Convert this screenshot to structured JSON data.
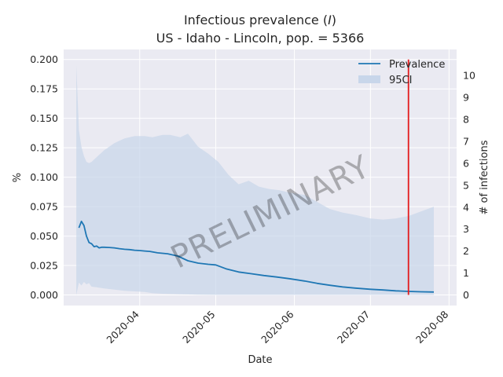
{
  "chart_data": {
    "type": "line",
    "title": "Infectious prevalence (I)",
    "title_parts": {
      "prefix": "Infectious prevalence (",
      "italic": "I",
      "suffix": ")"
    },
    "subtitle": "US - Idaho - Lincoln, pop. = 5366",
    "xlabel": "Date",
    "ylabel": "%",
    "y2label": "# of infections",
    "watermark": "PRELIMINARY",
    "population": 5366,
    "ylim": [
      -0.009,
      0.2085
    ],
    "yticks": [
      0.0,
      0.025,
      0.05,
      0.075,
      0.1,
      0.125,
      0.15,
      0.175,
      0.2
    ],
    "ytick_labels": [
      "0.000",
      "0.025",
      "0.050",
      "0.075",
      "0.100",
      "0.125",
      "0.150",
      "0.175",
      "0.200"
    ],
    "y2ticks": [
      0,
      1,
      2,
      3,
      4,
      5,
      6,
      7,
      8,
      9,
      10
    ],
    "y2tick_labels": [
      "0",
      "1",
      "2",
      "3",
      "4",
      "5",
      "6",
      "7",
      "8",
      "9",
      "10"
    ],
    "xlim": [
      "2020-03-02",
      "2020-08-04"
    ],
    "xticks": [
      "2020-04-01",
      "2020-05-01",
      "2020-06-01",
      "2020-07-01",
      "2020-08-01"
    ],
    "xtick_labels": [
      "2020-04",
      "2020-05",
      "2020-06",
      "2020-07",
      "2020-08"
    ],
    "grid": true,
    "legend": {
      "position": "top-right",
      "entries": [
        "Prevalence",
        "95CI"
      ]
    },
    "colors": {
      "prevalence": "#1f77b4",
      "ci_fill": "#c8d6ea",
      "vline": "#e31a1c",
      "axes_bg": "#eaeaf2",
      "grid": "#ffffff"
    },
    "vline": {
      "x": "2020-07-16",
      "ymin": 0.0,
      "ymax": 0.2
    },
    "series": [
      {
        "name": "Prevalence",
        "x": [
          "2020-03-08",
          "2020-03-09",
          "2020-03-10",
          "2020-03-11",
          "2020-03-12",
          "2020-03-13",
          "2020-03-14",
          "2020-03-15",
          "2020-03-16",
          "2020-03-17",
          "2020-03-18",
          "2020-03-20",
          "2020-03-22",
          "2020-03-24",
          "2020-03-26",
          "2020-03-28",
          "2020-03-30",
          "2020-04-01",
          "2020-04-03",
          "2020-04-05",
          "2020-04-08",
          "2020-04-12",
          "2020-04-16",
          "2020-04-20",
          "2020-04-24",
          "2020-04-28",
          "2020-05-01",
          "2020-05-05",
          "2020-05-10",
          "2020-05-15",
          "2020-05-20",
          "2020-05-25",
          "2020-05-30",
          "2020-06-05",
          "2020-06-10",
          "2020-06-15",
          "2020-06-20",
          "2020-06-25",
          "2020-07-01",
          "2020-07-06",
          "2020-07-11",
          "2020-07-16",
          "2020-07-21",
          "2020-07-26"
        ],
        "y": [
          0.057,
          0.0625,
          0.059,
          0.05,
          0.0445,
          0.0435,
          0.041,
          0.0415,
          0.04,
          0.0405,
          0.0405,
          0.0403,
          0.04,
          0.0393,
          0.0388,
          0.0385,
          0.038,
          0.0377,
          0.0373,
          0.037,
          0.0358,
          0.035,
          0.033,
          0.029,
          0.027,
          0.026,
          0.0255,
          0.0222,
          0.0195,
          0.018,
          0.0165,
          0.0152,
          0.0138,
          0.0118,
          0.0098,
          0.0082,
          0.0068,
          0.0058,
          0.0048,
          0.0042,
          0.0035,
          0.003,
          0.0027,
          0.0025
        ]
      }
    ],
    "ci": {
      "name": "95CI",
      "x": [
        "2020-03-07",
        "2020-03-08",
        "2020-03-09",
        "2020-03-10",
        "2020-03-11",
        "2020-03-12",
        "2020-03-13",
        "2020-03-15",
        "2020-03-18",
        "2020-03-22",
        "2020-03-26",
        "2020-03-30",
        "2020-04-03",
        "2020-04-06",
        "2020-04-10",
        "2020-04-13",
        "2020-04-17",
        "2020-04-20",
        "2020-04-24",
        "2020-04-28",
        "2020-05-02",
        "2020-05-06",
        "2020-05-10",
        "2020-05-14",
        "2020-05-18",
        "2020-05-22",
        "2020-05-26",
        "2020-05-30",
        "2020-06-05",
        "2020-06-10",
        "2020-06-15",
        "2020-06-20",
        "2020-06-25",
        "2020-07-01",
        "2020-07-06",
        "2020-07-11",
        "2020-07-16",
        "2020-07-21",
        "2020-07-26"
      ],
      "upper": [
        0.195,
        0.14,
        0.126,
        0.118,
        0.113,
        0.112,
        0.113,
        0.117,
        0.123,
        0.129,
        0.133,
        0.135,
        0.135,
        0.134,
        0.136,
        0.136,
        0.134,
        0.137,
        0.126,
        0.12,
        0.113,
        0.102,
        0.094,
        0.097,
        0.092,
        0.09,
        0.089,
        0.087,
        0.085,
        0.079,
        0.073,
        0.07,
        0.068,
        0.065,
        0.064,
        0.065,
        0.067,
        0.071,
        0.075
      ],
      "lower": [
        0.0,
        0.0105,
        0.008,
        0.011,
        0.009,
        0.01,
        0.007,
        0.0065,
        0.0055,
        0.0045,
        0.0035,
        0.003,
        0.0025,
        0.0015,
        0.001,
        0.0008,
        0.0006,
        0.0004,
        0.0002,
        0.0001,
        0.0,
        0.0,
        0.0,
        0.0,
        0.0,
        0.0,
        0.0,
        0.0,
        0.0,
        0.0,
        0.0,
        0.0,
        0.0,
        0.0,
        0.0,
        0.0,
        0.0,
        0.0,
        0.0
      ]
    }
  }
}
